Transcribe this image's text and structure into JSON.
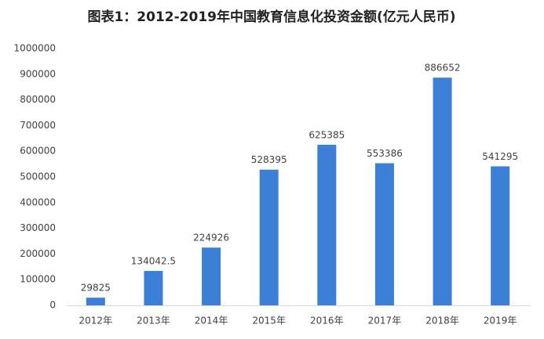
{
  "chart_data": {
    "type": "bar",
    "title": "图表1：2012-2019年中国教育信息化投资金额(亿元人民币)",
    "categories": [
      "2012年",
      "2013年",
      "2014年",
      "2015年",
      "2016年",
      "2017年",
      "2018年",
      "2019年"
    ],
    "values": [
      29825,
      134042.5,
      224926,
      528395,
      625385,
      553386,
      886652,
      541295
    ],
    "color": "#3c7fd6",
    "ylim": [
      0,
      1000000
    ],
    "yticks": [
      0,
      100000,
      200000,
      300000,
      400000,
      500000,
      600000,
      700000,
      800000,
      900000,
      1000000
    ],
    "grid": false
  }
}
